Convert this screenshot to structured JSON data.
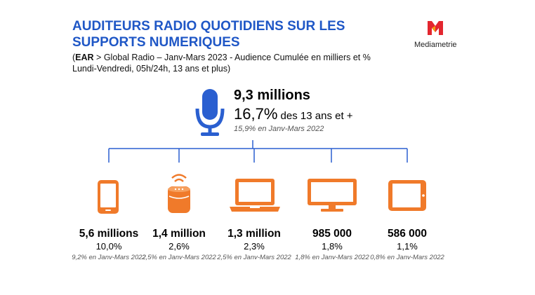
{
  "title": "AUDITEURS RADIO QUOTIDIENS SUR LES SUPPORTS NUMERIQUES",
  "subtitle": {
    "open_paren": "(",
    "ear": "EAR",
    "line1_rest": " > Global Radio – Janv-Mars 2023 - Audience Cumulée en milliers et %",
    "line2": "Lundi-Vendredi, 05h/24h, 13 ans et plus)"
  },
  "logo": {
    "text": "Mediametrie"
  },
  "main": {
    "value": "9,3 millions",
    "share_pct": "16,7%",
    "share_suffix": " des 13 ans et +",
    "previous": "15,9% en Janv-Mars 2022",
    "icon": "microphone-icon"
  },
  "colors": {
    "title_blue": "#1f57c6",
    "connector_blue": "#2a5fd0",
    "mic_blue": "#2a5fd0",
    "device_orange": "#f07a2a",
    "logo_red": "#e3262f"
  },
  "devices": [
    {
      "icon": "smartphone-icon",
      "value": "5,6 millions",
      "pct": "10,0%",
      "previous": "9,2% en Janv-Mars 2022"
    },
    {
      "icon": "smart-speaker-icon",
      "value": "1,4 million",
      "pct": "2,6%",
      "previous": "2,5% en Janv-Mars 2022"
    },
    {
      "icon": "laptop-icon",
      "value": "1,3 million",
      "pct": "2,3%",
      "previous": "2,5% en Janv-Mars 2022"
    },
    {
      "icon": "monitor-icon",
      "value": "985 000",
      "pct": "1,8%",
      "previous": "1,8% en Janv-Mars 2022"
    },
    {
      "icon": "tablet-icon",
      "value": "586 000",
      "pct": "1,1%",
      "previous": "0,8% en Janv-Mars 2022"
    }
  ]
}
